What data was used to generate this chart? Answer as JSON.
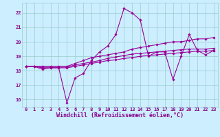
{
  "xlabel": "Windchill (Refroidissement éolien,°C)",
  "background_color": "#cceeff",
  "grid_color": "#99cccc",
  "line_color": "#990099",
  "xlim": [
    -0.5,
    23.5
  ],
  "ylim": [
    15.5,
    22.7
  ],
  "xticks": [
    0,
    1,
    2,
    3,
    4,
    5,
    6,
    7,
    8,
    9,
    10,
    11,
    12,
    13,
    14,
    15,
    16,
    17,
    18,
    19,
    20,
    21,
    22,
    23
  ],
  "yticks": [
    16,
    17,
    18,
    19,
    20,
    21,
    22
  ],
  "series": [
    [
      18.3,
      18.3,
      18.1,
      18.2,
      18.2,
      15.8,
      17.5,
      17.8,
      18.7,
      19.3,
      19.7,
      20.5,
      22.3,
      22.0,
      21.5,
      19.0,
      19.3,
      19.3,
      17.4,
      19.0,
      20.5,
      19.4,
      19.1,
      19.4
    ],
    [
      18.3,
      18.3,
      18.3,
      18.3,
      18.3,
      18.3,
      18.5,
      18.7,
      18.9,
      19.0,
      19.1,
      19.2,
      19.3,
      19.5,
      19.6,
      19.7,
      19.8,
      19.9,
      20.0,
      20.0,
      20.1,
      20.2,
      20.2,
      20.3
    ],
    [
      18.3,
      18.3,
      18.2,
      18.2,
      18.2,
      18.2,
      18.3,
      18.4,
      18.5,
      18.6,
      18.7,
      18.75,
      18.85,
      18.9,
      19.0,
      19.05,
      19.1,
      19.15,
      19.2,
      19.25,
      19.3,
      19.35,
      19.35,
      19.4
    ],
    [
      18.3,
      18.3,
      18.25,
      18.25,
      18.25,
      18.25,
      18.4,
      18.5,
      18.6,
      18.7,
      18.85,
      18.95,
      19.05,
      19.15,
      19.2,
      19.25,
      19.3,
      19.35,
      19.4,
      19.45,
      19.5,
      19.5,
      19.5,
      19.55
    ]
  ],
  "tick_fontsize": 5.0,
  "label_fontsize": 6.0,
  "font_color": "#880088",
  "marker": "D",
  "marker_size": 1.8,
  "linewidth": 0.8
}
